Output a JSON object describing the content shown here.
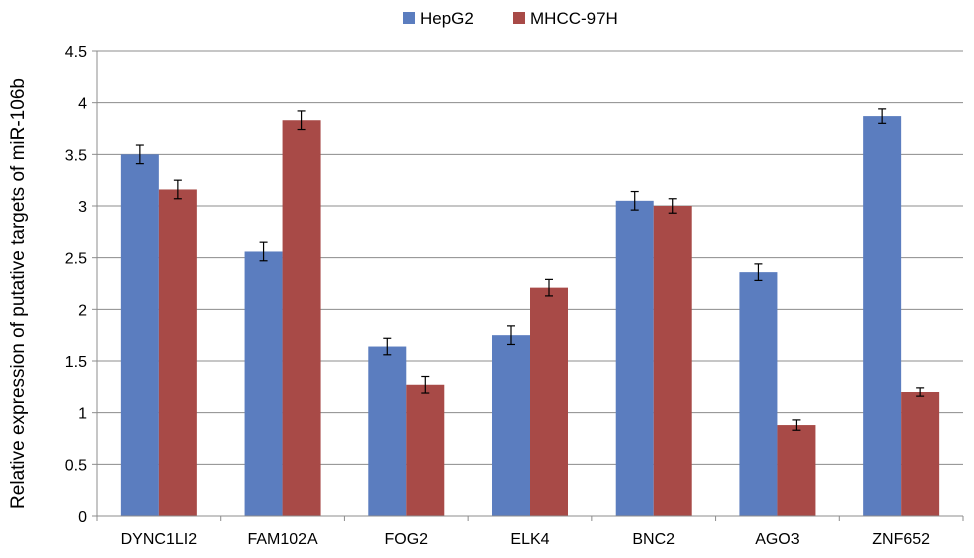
{
  "chart_data": {
    "type": "bar",
    "title": "",
    "xlabel": "",
    "ylabel": "Relative expression of putative targets of miR-106b",
    "ylim": [
      0,
      4.5
    ],
    "yticks": [
      "0",
      "0.5",
      "1",
      "1.5",
      "2",
      "2.5",
      "3",
      "3.5",
      "4",
      "4.5"
    ],
    "grid": true,
    "legend_position": "top",
    "categories": [
      "DYNC1LI2",
      "FAM102A",
      "FOG2",
      "ELK4",
      "BNC2",
      "AGO3",
      "ZNF652"
    ],
    "series": [
      {
        "name": "HepG2",
        "color": "#5B7DBF",
        "values": [
          3.5,
          2.56,
          1.64,
          1.75,
          3.05,
          2.36,
          3.87
        ],
        "errors": [
          0.09,
          0.09,
          0.08,
          0.09,
          0.09,
          0.08,
          0.07
        ]
      },
      {
        "name": "MHCC-97H",
        "color": "#A84A47",
        "values": [
          3.16,
          3.83,
          1.27,
          2.21,
          3.0,
          0.88,
          1.2
        ],
        "errors": [
          0.09,
          0.09,
          0.08,
          0.08,
          0.07,
          0.05,
          0.04
        ]
      }
    ]
  }
}
